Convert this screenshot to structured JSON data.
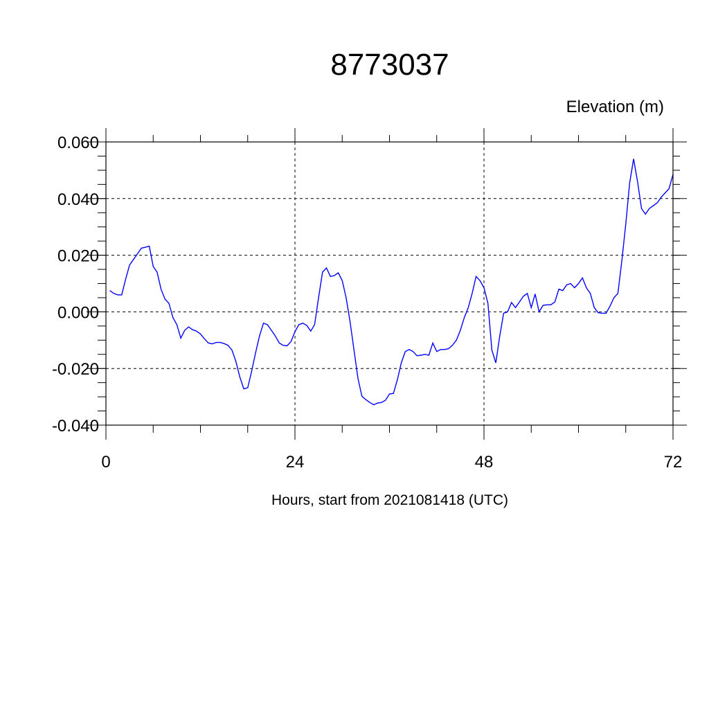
{
  "chart_data": {
    "type": "line",
    "title": "8773037",
    "ylabel": "Elevation (m)",
    "xlabel": "Hours, start from 2021081418 (UTC)",
    "xlim": [
      0,
      72
    ],
    "ylim": [
      -0.04,
      0.06
    ],
    "x_ticks": [
      0,
      24,
      48,
      72
    ],
    "x_tick_labels": [
      "0",
      "24",
      "48",
      "72"
    ],
    "y_ticks": [
      -0.04,
      -0.02,
      0.0,
      0.02,
      0.04,
      0.06
    ],
    "y_tick_labels": [
      "-0.040",
      "-0.020",
      "0.000",
      "0.020",
      "0.040",
      "0.060"
    ],
    "grid": true,
    "line_color": "#0000ff",
    "series": [
      {
        "x": [
          0.5,
          1.0,
          1.5,
          2.0,
          2.5,
          3.0,
          3.5,
          4.0,
          4.5,
          5.0,
          5.5,
          6.0,
          6.5,
          7.0,
          7.5,
          8.0,
          8.5,
          9.0,
          9.5,
          10.0,
          10.5,
          11.0,
          11.5,
          12.0,
          12.5,
          13.0,
          13.5,
          14.0,
          14.5,
          15.0,
          15.5,
          16.0,
          16.5,
          17.0,
          17.5,
          18.0,
          18.5,
          19.0,
          19.5,
          20.0,
          20.5,
          21.0,
          21.5,
          22.0,
          22.5,
          23.0,
          23.5,
          24.0,
          24.5,
          25.0,
          25.5,
          26.0,
          26.5,
          27.0,
          27.5,
          28.0,
          28.5,
          29.0,
          29.5,
          30.0,
          30.5,
          31.0,
          31.5,
          32.0,
          32.5,
          33.0,
          33.5,
          34.0,
          34.5,
          35.0,
          35.5,
          36.0,
          36.5,
          37.0,
          37.5,
          38.0,
          38.5,
          39.0,
          39.5,
          40.0,
          40.5,
          41.0,
          41.5,
          42.0,
          42.5,
          43.0,
          43.5,
          44.0,
          44.5,
          45.0,
          45.5,
          46.0,
          46.5,
          47.0,
          47.5,
          48.0,
          48.5,
          49.0,
          49.5,
          50.0,
          50.5,
          51.0,
          51.5,
          52.0,
          52.5,
          53.0,
          53.5,
          54.0,
          54.5,
          55.0,
          55.5,
          56.0,
          56.5,
          57.0,
          57.5,
          58.0,
          58.5,
          59.0,
          59.5,
          60.0,
          60.5,
          61.0,
          61.5,
          62.0,
          62.5,
          63.0,
          63.5,
          64.0,
          64.5,
          65.0,
          65.5,
          66.0,
          66.5,
          67.0,
          67.5,
          68.0,
          68.5,
          69.0,
          69.5,
          70.0,
          70.5,
          71.0,
          71.5,
          72.0
        ],
        "y": [
          0.0075,
          0.0065,
          0.006,
          0.006,
          0.0115,
          0.0165,
          0.0185,
          0.0205,
          0.0225,
          0.0228,
          0.0232,
          0.016,
          0.014,
          0.008,
          0.0045,
          0.003,
          -0.002,
          -0.0045,
          -0.0093,
          -0.0065,
          -0.0053,
          -0.0063,
          -0.0068,
          -0.0078,
          -0.0095,
          -0.011,
          -0.0113,
          -0.0108,
          -0.0108,
          -0.0112,
          -0.0118,
          -0.0135,
          -0.0175,
          -0.023,
          -0.0272,
          -0.0268,
          -0.021,
          -0.0145,
          -0.0085,
          -0.004,
          -0.0045,
          -0.0065,
          -0.0085,
          -0.011,
          -0.0118,
          -0.012,
          -0.0105,
          -0.007,
          -0.0045,
          -0.004,
          -0.0048,
          -0.0068,
          -0.0045,
          0.005,
          0.014,
          0.0155,
          0.0125,
          0.0128,
          0.0138,
          0.011,
          0.005,
          -0.0035,
          -0.0135,
          -0.0235,
          -0.0298,
          -0.031,
          -0.032,
          -0.0328,
          -0.0322,
          -0.032,
          -0.0312,
          -0.029,
          -0.0288,
          -0.024,
          -0.018,
          -0.014,
          -0.0133,
          -0.014,
          -0.0155,
          -0.0153,
          -0.015,
          -0.0153,
          -0.011,
          -0.014,
          -0.0133,
          -0.0133,
          -0.013,
          -0.0118,
          -0.01,
          -0.0065,
          -0.002,
          0.0015,
          0.0065,
          0.0125,
          0.011,
          0.0085,
          0.003,
          -0.0135,
          -0.018,
          -0.0085,
          -0.0005,
          0.0,
          0.0033,
          0.0015,
          0.0035,
          0.0055,
          0.0065,
          0.0015,
          0.0063,
          0.0,
          0.0023,
          0.0025,
          0.0025,
          0.0035,
          0.008,
          0.0075,
          0.0095,
          0.01,
          0.0085,
          0.01,
          0.012,
          0.0085,
          0.0065,
          0.0015,
          -0.0003,
          -0.0005,
          -0.0005,
          0.002,
          0.005,
          0.0065,
          0.018,
          0.031,
          0.0455,
          0.054,
          0.046,
          0.0365,
          0.0345,
          0.0365,
          0.0375,
          0.0385,
          0.0405,
          0.042,
          0.0435,
          0.0485
        ]
      }
    ]
  }
}
